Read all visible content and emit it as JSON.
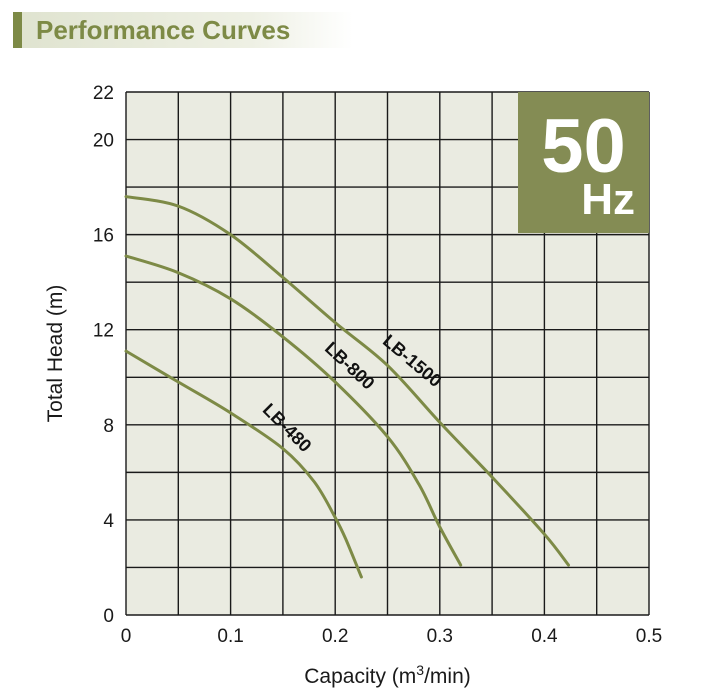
{
  "header": {
    "title": "Performance Curves"
  },
  "badge": {
    "value": "50",
    "unit": "Hz",
    "color": "#848c54"
  },
  "colors": {
    "plot_bg": "#eaebe1",
    "curve": "#7d8a46",
    "grid": "#1a1a1a"
  },
  "chart_data": {
    "type": "line",
    "title": "Performance Curves",
    "xlabel_text": "Capacity (m",
    "xlabel_sup": "3",
    "xlabel_tail": "/min)",
    "ylabel": "Total Head (m)",
    "xlim": [
      0,
      0.5
    ],
    "ylim": [
      0,
      22
    ],
    "xticks": [
      0,
      0.05,
      0.1,
      0.15,
      0.2,
      0.25,
      0.3,
      0.35,
      0.4,
      0.45,
      0.5
    ],
    "yticks": [
      0,
      2,
      4,
      6,
      8,
      10,
      12,
      14,
      16,
      18,
      20,
      22
    ],
    "xtick_labels": [
      {
        "value": 0,
        "label": "0"
      },
      {
        "value": 0.1,
        "label": "0.1"
      },
      {
        "value": 0.2,
        "label": "0.2"
      },
      {
        "value": 0.3,
        "label": "0.3"
      },
      {
        "value": 0.4,
        "label": "0.4"
      },
      {
        "value": 0.5,
        "label": "0.5"
      }
    ],
    "ytick_labels": [
      {
        "value": 0,
        "label": "0"
      },
      {
        "value": 4,
        "label": "4"
      },
      {
        "value": 8,
        "label": "8"
      },
      {
        "value": 12,
        "label": "12"
      },
      {
        "value": 16,
        "label": "16"
      },
      {
        "value": 20,
        "label": "20"
      },
      {
        "value": 22,
        "label": "22"
      }
    ],
    "grid": true,
    "series": [
      {
        "name": "LB-1500",
        "label_at": [
          0.27,
          10.5
        ],
        "label_angle": 40,
        "points": [
          [
            0,
            17.6
          ],
          [
            0.05,
            17.2
          ],
          [
            0.1,
            16.0
          ],
          [
            0.15,
            14.2
          ],
          [
            0.2,
            12.3
          ],
          [
            0.25,
            10.5
          ],
          [
            0.3,
            8.1
          ],
          [
            0.35,
            5.8
          ],
          [
            0.4,
            3.4
          ],
          [
            0.423,
            2.1
          ]
        ]
      },
      {
        "name": "LB-800",
        "label_at": [
          0.21,
          10.3
        ],
        "label_angle": 43,
        "points": [
          [
            0,
            15.1
          ],
          [
            0.05,
            14.4
          ],
          [
            0.1,
            13.3
          ],
          [
            0.15,
            11.7
          ],
          [
            0.2,
            9.8
          ],
          [
            0.25,
            7.5
          ],
          [
            0.28,
            5.5
          ],
          [
            0.3,
            3.7
          ],
          [
            0.32,
            2.1
          ]
        ]
      },
      {
        "name": "LB-480",
        "label_at": [
          0.15,
          7.7
        ],
        "label_angle": 45,
        "points": [
          [
            0,
            11.1
          ],
          [
            0.05,
            9.8
          ],
          [
            0.1,
            8.5
          ],
          [
            0.15,
            7.0
          ],
          [
            0.18,
            5.6
          ],
          [
            0.2,
            4.1
          ],
          [
            0.21,
            3.2
          ],
          [
            0.225,
            1.6
          ]
        ]
      }
    ]
  }
}
